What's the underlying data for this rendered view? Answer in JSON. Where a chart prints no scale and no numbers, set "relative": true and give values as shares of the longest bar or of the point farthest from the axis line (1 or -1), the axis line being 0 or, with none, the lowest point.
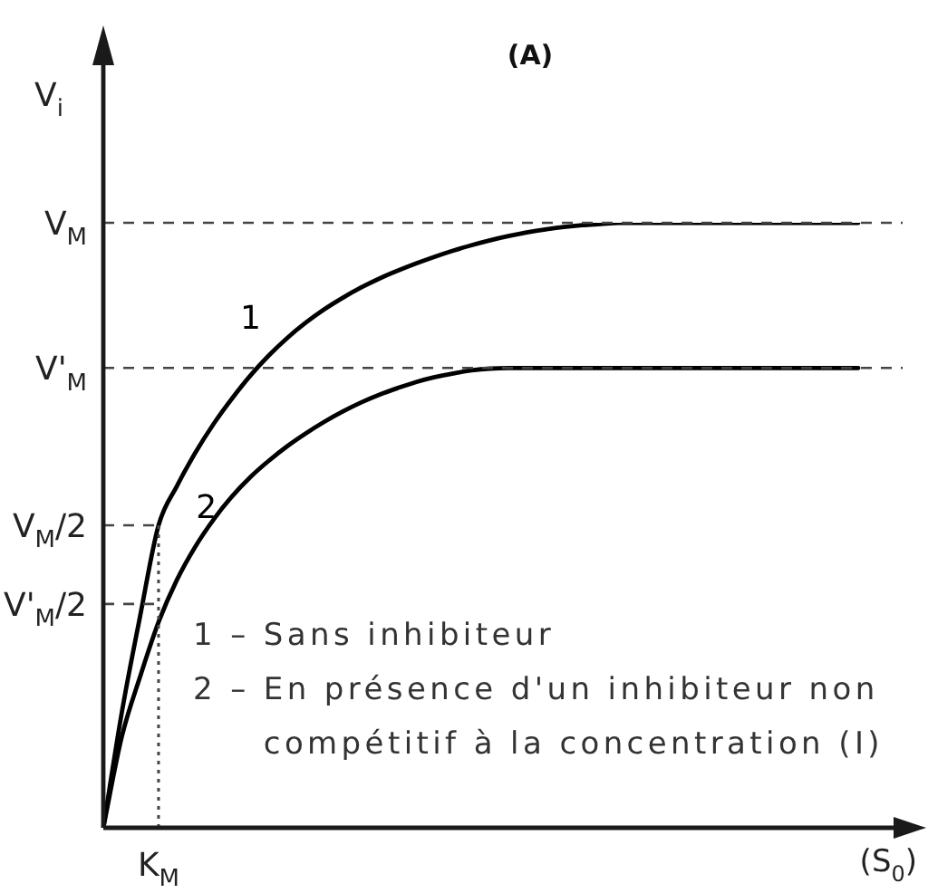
{
  "chart_data": {
    "type": "line",
    "title": "(A)",
    "xlabel": "(S$_{0}$)",
    "ylabel": "V$_{i}$",
    "relative": true,
    "categories": [
      null,
      null,
      null,
      null,
      null,
      null,
      null,
      null,
      null,
      null,
      null,
      null,
      null,
      null,
      null,
      null,
      null,
      null,
      null,
      null,
      null,
      null,
      null,
      null,
      null,
      null,
      null,
      null,
      null,
      null,
      null,
      null,
      null,
      null,
      null,
      null,
      null,
      null,
      null,
      null,
      null,
      null,
      null,
      null,
      null
    ],
    "series": [
      {
        "name": "1",
        "color": "#000000",
        "values": [
          0,
          0.19,
          0.35,
          0.5,
          0.565,
          0.62,
          0.668,
          0.71,
          0.748,
          0.781,
          0.81,
          0.835,
          0.857,
          0.876,
          0.893,
          0.908,
          0.921,
          0.933,
          0.944,
          0.954,
          0.963,
          0.971,
          0.978,
          0.984,
          0.989,
          0.993,
          0.996,
          0.998,
          1,
          1,
          1,
          1,
          1,
          1,
          1,
          1,
          1,
          1,
          1,
          1,
          1,
          1,
          null,
          null,
          null
        ]
      },
      {
        "name": "2",
        "color": "#000000",
        "values": [
          0,
          0.15,
          0.25,
          0.34,
          0.41,
          0.465,
          0.51,
          0.548,
          0.58,
          0.607,
          0.631,
          0.652,
          0.671,
          0.688,
          0.703,
          0.716,
          0.727,
          0.737,
          0.745,
          0.751,
          0.756,
          0.759,
          0.76,
          0.76,
          0.76,
          0.76,
          0.76,
          0.76,
          0.76,
          0.76,
          0.76,
          0.76,
          0.76,
          0.76,
          0.76,
          0.76,
          0.76,
          0.76,
          0.76,
          0.76,
          0.76,
          0.76,
          null,
          null,
          null
        ]
      }
    ],
    "ref_lines": [
      {
        "axis": "y",
        "value": 1,
        "label": "V$_{M}$",
        "line_style": "dashed",
        "color": "#444444"
      },
      {
        "axis": "y",
        "value": 0.76,
        "label": "V'$_{M}$",
        "line_style": "dashed",
        "color": "#444444"
      },
      {
        "axis": "y",
        "value": 0.5,
        "label": "V$_{M}$/2",
        "line_style": "dashed",
        "color": "#444444"
      },
      {
        "axis": "y",
        "value": 0.37,
        "label": "V'$_{M}$/2",
        "line_style": "dashed",
        "color": "#444444"
      }
    ],
    "annotations": [
      "1 – Sans inhibiteur",
      "2 – En présence d'un inhibiteur non compétitif à la concentration (I)",
      {
        "text": "K$_{M}$",
        "y": 0.5
      }
    ]
  }
}
